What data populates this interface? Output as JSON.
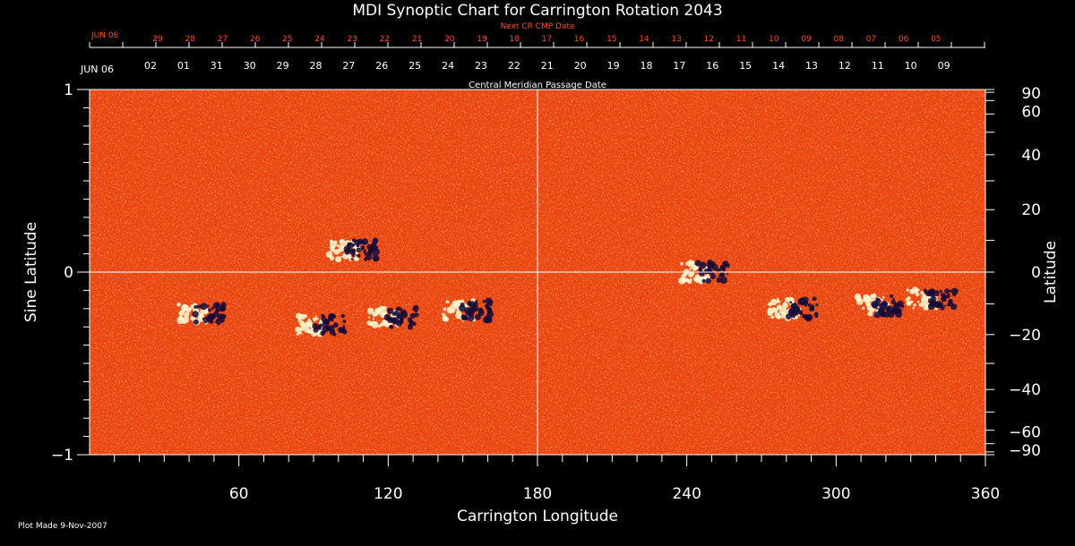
{
  "chart_data": {
    "type": "heatmap",
    "title": "MDI Synoptic Chart for Carrington Rotation 2043",
    "xlabel": "Carrington Longitude",
    "ylabel_left": "Sine Latitude",
    "ylabel_right": "Latitude",
    "xlim": [
      0,
      360
    ],
    "ylim": [
      -1,
      1
    ],
    "x_ticks": [
      "60",
      "120",
      "180",
      "240",
      "300",
      "360"
    ],
    "y_ticks_left": [
      "1",
      "0",
      "−1"
    ],
    "y_ticks_right": [
      {
        "deg": 90,
        "label": "90"
      },
      {
        "deg": 60,
        "label": "60"
      },
      {
        "deg": 40,
        "label": "40"
      },
      {
        "deg": 20,
        "label": "20"
      },
      {
        "deg": 0,
        "label": "0"
      },
      {
        "deg": -20,
        "label": "−20"
      },
      {
        "deg": -40,
        "label": "−40"
      },
      {
        "deg": -60,
        "label": "−60"
      },
      {
        "deg": -90,
        "label": "−90"
      }
    ],
    "cmp_axis_title": "Central Meridian Passage Date",
    "cmp_start_label": "JUN 06",
    "cmp_dates": [
      "02",
      "01",
      "31",
      "30",
      "29",
      "28",
      "27",
      "26",
      "25",
      "24",
      "23",
      "22",
      "21",
      "20",
      "19",
      "18",
      "17",
      "16",
      "15",
      "14",
      "13",
      "12",
      "11",
      "10",
      "09"
    ],
    "next_axis_title": "Next CR CMP Date",
    "next_start_label": "JUN 06",
    "next_dates": [
      "29",
      "28",
      "27",
      "26",
      "25",
      "24",
      "23",
      "22",
      "21",
      "20",
      "19",
      "18",
      "17",
      "16",
      "15",
      "14",
      "13",
      "12",
      "11",
      "10",
      "09",
      "08",
      "07",
      "06",
      "05"
    ],
    "colors": {
      "background": "#ff5a14",
      "positive": "#fff8d0",
      "negative": "#140a3a",
      "text": "#ffffff",
      "next_axis": "#ff4a1a"
    },
    "active_regions": [
      {
        "lon": 45,
        "sinlat": -0.23
      },
      {
        "lon": 93,
        "sinlat": -0.29
      },
      {
        "lon": 106,
        "sinlat": 0.12
      },
      {
        "lon": 122,
        "sinlat": -0.25
      },
      {
        "lon": 152,
        "sinlat": -0.21
      },
      {
        "lon": 247,
        "sinlat": 0.0
      },
      {
        "lon": 283,
        "sinlat": -0.2
      },
      {
        "lon": 318,
        "sinlat": -0.18
      },
      {
        "lon": 338,
        "sinlat": -0.15
      }
    ]
  },
  "footer": {
    "plot_made": "Plot Made  9-Nov-2007"
  }
}
